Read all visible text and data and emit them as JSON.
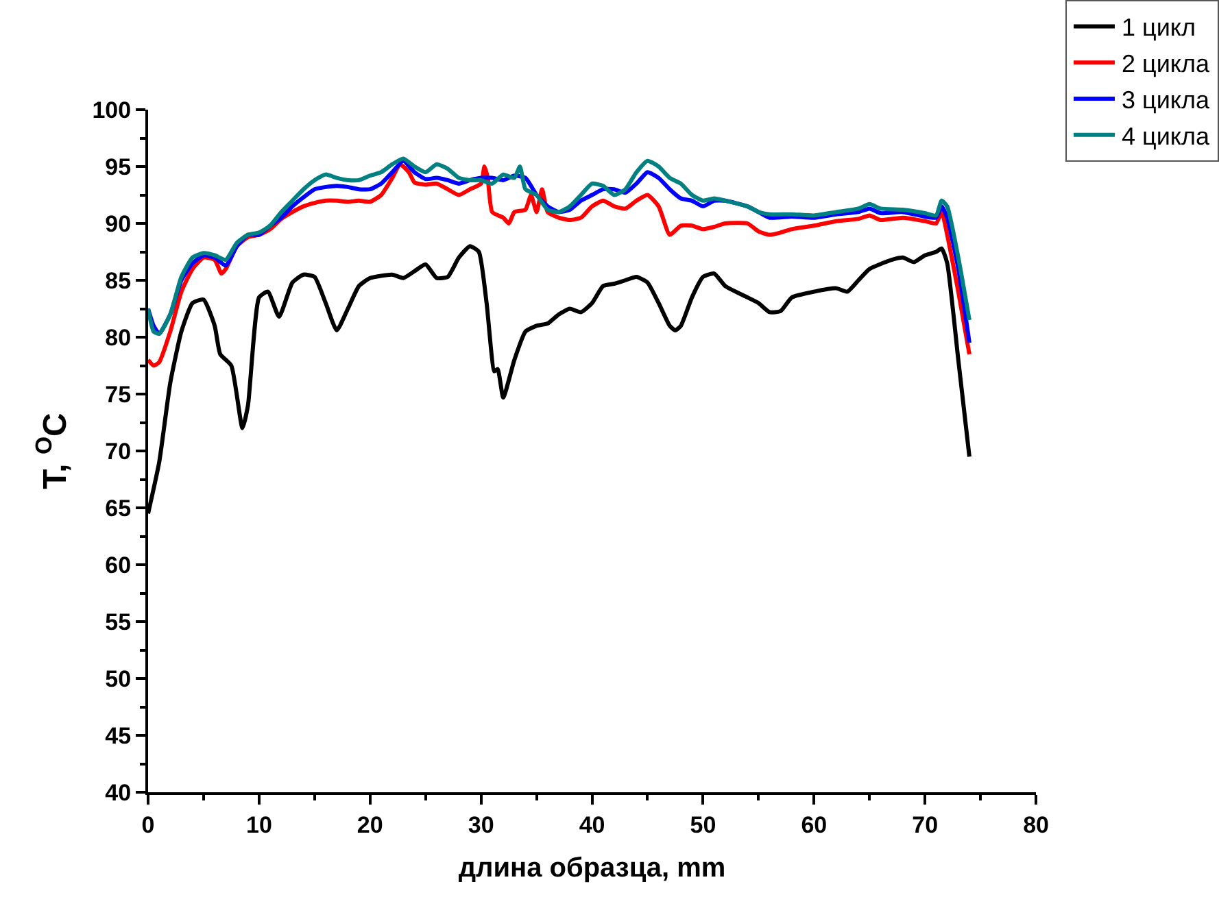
{
  "chart_data": {
    "type": "line",
    "xlabel": "длина образца, mm",
    "ylabel": "T, $^{O}$C",
    "xlim": [
      0,
      80
    ],
    "xticks": [
      0,
      10,
      20,
      30,
      40,
      50,
      60,
      70,
      80
    ],
    "ylim": [
      40,
      100
    ],
    "yticks": [
      40,
      45,
      50,
      55,
      60,
      65,
      70,
      75,
      80,
      85,
      90,
      95,
      100
    ],
    "legend": "top right",
    "marker": "none",
    "line_style": "solid",
    "series": [
      {
        "name": "1 цикл",
        "color": "#000000",
        "x": [
          0,
          1,
          2,
          3,
          4,
          5,
          6,
          6.5,
          7.5,
          8.5,
          9,
          10,
          10.8,
          11.8,
          13,
          14,
          15,
          16,
          17,
          18,
          19,
          20,
          22,
          23,
          24,
          25,
          26,
          27,
          28,
          29,
          29.8,
          30.5,
          31.2,
          31.5,
          32,
          33,
          34,
          35,
          36,
          37,
          38,
          39,
          40,
          41,
          42,
          43,
          44,
          45,
          46,
          47,
          47.5,
          48,
          49,
          50,
          51,
          52,
          54,
          55,
          56,
          57,
          58,
          60,
          62,
          63,
          64,
          65,
          67,
          68,
          69,
          70,
          71,
          71.5,
          72,
          73,
          74
        ],
        "values": [
          64.5,
          69,
          76,
          80.5,
          83,
          83.3,
          81,
          78.5,
          77.5,
          72,
          74,
          83.5,
          84,
          81.8,
          84.8,
          85.5,
          85.3,
          83,
          80.6,
          82.5,
          84.5,
          85.2,
          85.5,
          85.2,
          85.8,
          86.4,
          85.2,
          85.3,
          87,
          88,
          87.5,
          83,
          77,
          77.2,
          74.7,
          78,
          80.5,
          81,
          81.2,
          82,
          82.5,
          82.2,
          83,
          84.5,
          84.7,
          85,
          85.3,
          84.8,
          83,
          81,
          80.6,
          81,
          83.5,
          85.3,
          85.6,
          84.5,
          83.5,
          83,
          82.2,
          82.3,
          83.5,
          84,
          84.3,
          84,
          85,
          86,
          86.8,
          87,
          86.6,
          87.2,
          87.5,
          87.8,
          86.5,
          78,
          69.5
        ]
      },
      {
        "name": "2 цикла",
        "color": "#ff0000",
        "x": [
          0,
          0.5,
          1,
          2,
          3,
          4,
          5,
          6,
          6.6,
          7,
          8,
          9,
          10,
          11,
          12,
          13,
          14,
          15,
          16,
          17,
          18,
          19,
          20,
          21,
          22,
          22.7,
          23.5,
          24,
          25,
          26,
          27,
          28,
          29,
          30,
          30.3,
          30.6,
          31,
          32,
          32.5,
          33,
          34,
          34.5,
          35,
          35.5,
          36,
          37,
          38,
          39,
          40,
          41,
          42,
          43,
          44,
          45,
          46,
          47,
          48,
          49,
          50,
          51,
          52,
          54,
          55,
          56,
          57,
          58,
          60,
          62,
          64,
          65,
          66,
          68,
          70,
          71,
          71.5,
          72,
          73,
          74
        ],
        "values": [
          78,
          77.5,
          77.8,
          80.5,
          84,
          86,
          87,
          86.8,
          85.6,
          86,
          88,
          88.8,
          89,
          89.5,
          90.4,
          91,
          91.5,
          91.8,
          92,
          92,
          91.9,
          92,
          91.9,
          92.5,
          94,
          95.2,
          94.5,
          93.6,
          93.4,
          93.5,
          93,
          92.5,
          93,
          93.5,
          95,
          94,
          91,
          90.5,
          90,
          91,
          91.2,
          92.5,
          91,
          93,
          91,
          90.5,
          90.3,
          90.5,
          91.5,
          92,
          91.5,
          91.3,
          92,
          92.5,
          91.5,
          89,
          89.8,
          89.8,
          89.5,
          89.7,
          90,
          90,
          89.3,
          89,
          89.2,
          89.5,
          89.8,
          90.2,
          90.4,
          90.7,
          90.3,
          90.5,
          90.2,
          90,
          91,
          89,
          84,
          78.5
        ]
      },
      {
        "name": "3 цикла",
        "color": "#0000ff",
        "x": [
          0,
          0.5,
          1,
          2,
          3,
          4,
          5,
          6,
          7,
          8,
          9,
          10,
          11,
          12,
          13,
          14,
          15,
          16,
          17,
          18,
          19,
          20,
          21,
          22,
          23,
          24,
          25,
          26,
          27,
          28,
          29,
          30,
          31,
          32,
          33,
          34,
          35,
          36,
          37,
          38,
          39,
          40,
          41,
          42,
          43,
          44,
          45,
          46,
          47,
          48,
          49,
          50,
          51,
          52,
          54,
          55,
          56,
          58,
          60,
          62,
          64,
          65,
          66,
          68,
          70,
          71,
          71.5,
          72,
          73,
          74
        ],
        "values": [
          82.5,
          81,
          80.3,
          82,
          85,
          86.5,
          87.2,
          87,
          86.3,
          88,
          89,
          89,
          89.8,
          90.5,
          91.5,
          92.3,
          93,
          93.2,
          93.3,
          93.2,
          93,
          93,
          93.5,
          94.5,
          95.5,
          94.5,
          93.9,
          94,
          93.8,
          93.5,
          93.8,
          94,
          94,
          93.8,
          94.2,
          94,
          92.5,
          91.5,
          91,
          91.2,
          92,
          92.5,
          93,
          93,
          92.7,
          93.5,
          94.5,
          94,
          93,
          92.2,
          92,
          91.5,
          92,
          92,
          91.5,
          91,
          90.5,
          90.6,
          90.5,
          90.8,
          91,
          91.3,
          90.9,
          91,
          90.6,
          90.5,
          91.5,
          90.5,
          86,
          79.5
        ]
      },
      {
        "name": "4 цикла",
        "color": "#008080",
        "x": [
          0,
          0.5,
          1,
          2,
          3,
          4,
          5,
          6,
          7,
          8,
          9,
          10,
          11,
          12,
          13,
          14,
          15,
          16,
          17,
          18,
          19,
          20,
          21,
          22,
          23,
          24,
          25,
          26,
          27,
          28,
          29,
          30,
          31,
          32,
          33,
          33.5,
          34,
          35,
          36,
          37,
          38,
          39,
          40,
          41,
          42,
          43,
          44,
          45,
          46,
          47,
          48,
          49,
          50,
          51,
          52,
          54,
          55,
          56,
          58,
          60,
          62,
          64,
          65,
          66,
          68,
          70,
          71,
          71.5,
          72,
          73,
          74
        ],
        "values": [
          82.5,
          80.5,
          80.3,
          82,
          85.3,
          87,
          87.4,
          87.2,
          86.8,
          88.3,
          89,
          89.2,
          89.8,
          91,
          92,
          93,
          93.8,
          94.3,
          94,
          93.8,
          93.8,
          94.2,
          94.5,
          95.2,
          95.7,
          95,
          94.5,
          95.2,
          94.8,
          94,
          93.8,
          93.8,
          93.5,
          94.3,
          94,
          95,
          93,
          92.5,
          91.2,
          91,
          91.5,
          92.5,
          93.5,
          93.3,
          92.5,
          93,
          94.5,
          95.5,
          95,
          94,
          93.5,
          92.5,
          92,
          92.2,
          92,
          91.5,
          91,
          90.8,
          90.8,
          90.7,
          91,
          91.3,
          91.7,
          91.3,
          91.2,
          90.9,
          90.7,
          92,
          91.5,
          87,
          81.5
        ]
      }
    ]
  }
}
